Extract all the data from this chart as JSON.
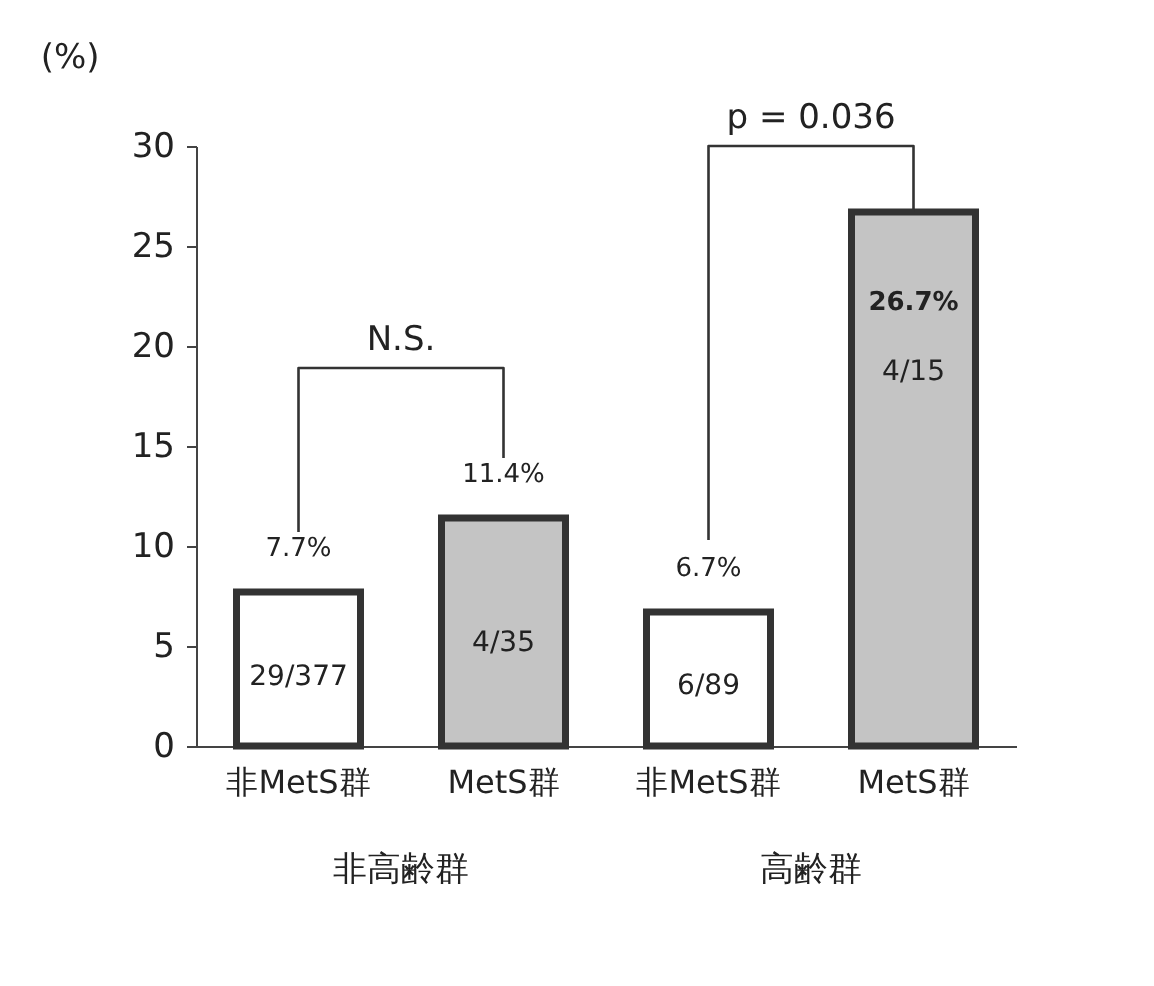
{
  "chart_data": {
    "type": "bar",
    "ylabel": "(%)",
    "categories": [
      "非MetS群",
      "MetS群",
      "非MetS群",
      "MetS群"
    ],
    "values": [
      7.7,
      11.4,
      6.7,
      26.7
    ],
    "colors": [
      "#ffffff",
      "#c4c4c4",
      "#ffffff",
      "#c4c4c4"
    ],
    "value_labels": [
      "7.7%",
      "11.4%",
      "6.7%",
      "26.7%"
    ],
    "ylim": [
      0,
      30
    ],
    "yticks": [
      0,
      5,
      10,
      15,
      20,
      25,
      30
    ],
    "grid": false,
    "annotations": [
      "29/377",
      "4/35",
      "6/89",
      "4/15",
      "N.S.",
      "p = 0.036",
      "非高齢群",
      "高齢群"
    ]
  }
}
